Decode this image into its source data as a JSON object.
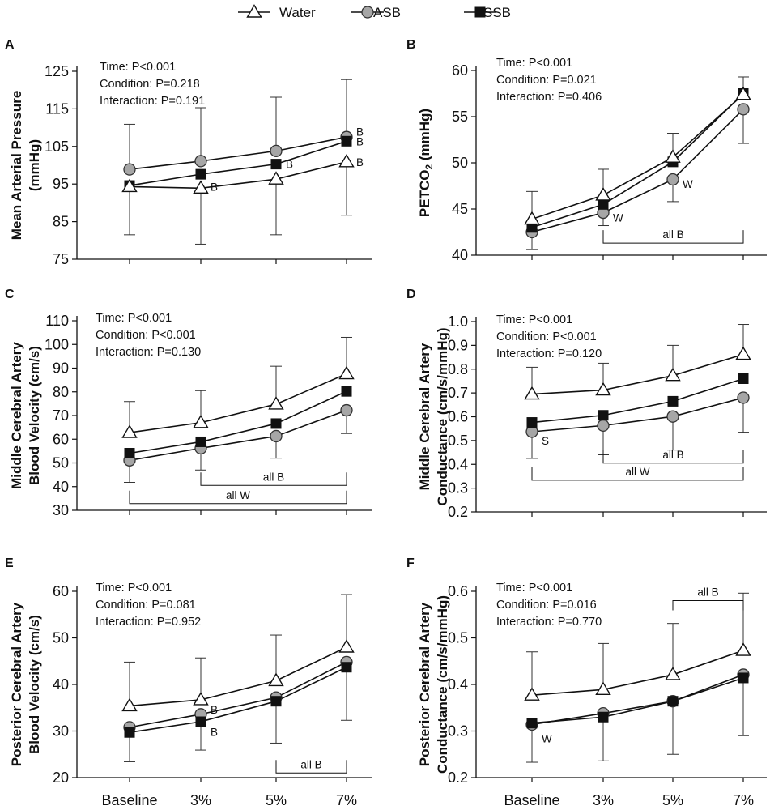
{
  "legend": [
    {
      "name": "Water",
      "marker": "triangle"
    },
    {
      "name": "ASB",
      "marker": "circle"
    },
    {
      "name": "SSB",
      "marker": "square"
    }
  ],
  "colors": {
    "water_fill": "#ffffff",
    "asb_fill": "#a6a6a6",
    "ssb_fill": "#111111",
    "line": "#111111"
  },
  "chart_data": [
    {
      "panel": "A",
      "type": "line",
      "ylabel_lines": [
        "Mean Arterial Pressure",
        "(mmHg)"
      ],
      "ylim": [
        75,
        125
      ],
      "yticks": [
        75,
        85,
        95,
        105,
        115,
        125
      ],
      "ytick_labels": [
        "75",
        "85",
        "95",
        "105",
        "115",
        "125"
      ],
      "categories": [
        "Baseline",
        "3%",
        "5%",
        "7%"
      ],
      "show_xticklabels": false,
      "series": [
        {
          "name": "Water",
          "values": [
            94.3,
            93.9,
            96.3,
            100.9
          ],
          "sd_up": [
            null,
            null,
            null,
            null
          ],
          "sd_down": [
            81.5,
            79.0,
            81.5,
            86.7
          ]
        },
        {
          "name": "ASB",
          "values": [
            98.9,
            101.1,
            103.8,
            107.5
          ],
          "sd_up": [
            110.9,
            115.3,
            118.1,
            122.8
          ],
          "sd_down": [
            null,
            null,
            null,
            null
          ]
        },
        {
          "name": "SSB",
          "values": [
            94.6,
            97.6,
            100.3,
            106.4
          ],
          "sd_up": [
            null,
            null,
            null,
            null
          ],
          "sd_down": [
            null,
            null,
            null,
            null
          ]
        }
      ],
      "stats": [
        "Time: P<0.001",
        "Condition: P=0.218",
        "Interaction: P=0.191"
      ],
      "annotations": [
        {
          "text": "B",
          "x": 1,
          "y": 94.3
        },
        {
          "text": "B",
          "x": 2,
          "y": 100.3
        },
        {
          "text": "B",
          "x": 3,
          "y": 108.9
        },
        {
          "text": "B",
          "x": 3,
          "y": 106.4
        },
        {
          "text": "B",
          "x": 3,
          "y": 100.9
        }
      ],
      "brackets": []
    },
    {
      "panel": "B",
      "type": "line",
      "ylabel_lines": [
        "PETCO2 (mmHg)"
      ],
      "ylim": [
        40,
        60
      ],
      "yticks": [
        40,
        45,
        50,
        55,
        60
      ],
      "ytick_labels": [
        "40",
        "45",
        "50",
        "55",
        "60"
      ],
      "categories": [
        "Baseline",
        "3%",
        "5%",
        "7%"
      ],
      "show_xticklabels": false,
      "series": [
        {
          "name": "Water",
          "values": [
            43.9,
            46.5,
            50.6,
            57.4
          ],
          "sd_up": [
            46.9,
            49.3,
            53.2,
            59.3
          ],
          "sd_down": [
            null,
            null,
            null,
            null
          ]
        },
        {
          "name": "ASB",
          "values": [
            42.5,
            44.6,
            48.2,
            55.8
          ],
          "sd_up": [
            null,
            null,
            null,
            null
          ],
          "sd_down": [
            40.6,
            43.2,
            45.8,
            52.1
          ]
        },
        {
          "name": "SSB",
          "values": [
            43.0,
            45.5,
            50.1,
            57.5
          ],
          "sd_up": [
            null,
            null,
            null,
            null
          ],
          "sd_down": [
            null,
            null,
            null,
            null
          ]
        }
      ],
      "stats": [
        "Time: P<0.001",
        "Condition: P=0.021",
        "Interaction: P=0.406"
      ],
      "annotations": [
        {
          "text": "W",
          "x": 1,
          "y": 44.1
        },
        {
          "text": "W",
          "x": 2,
          "y": 47.7
        }
      ],
      "brackets": [
        {
          "label": "all B",
          "x1": 1,
          "x2": 3,
          "y": 41.3,
          "ticks": "up",
          "label_pos": "above"
        }
      ]
    },
    {
      "panel": "C",
      "type": "line",
      "ylabel_lines": [
        "Middle Cerebral Artery",
        "Blood Velocity (cm/s)"
      ],
      "ylim": [
        30,
        110
      ],
      "yticks": [
        30,
        40,
        50,
        60,
        70,
        80,
        90,
        100,
        110
      ],
      "ytick_labels": [
        "30",
        "40",
        "50",
        "60",
        "70",
        "80",
        "90",
        "100",
        "110"
      ],
      "categories": [
        "Baseline",
        "3%",
        "5%",
        "7%"
      ],
      "show_xticklabels": false,
      "series": [
        {
          "name": "Water",
          "values": [
            62.8,
            67.0,
            74.8,
            87.6
          ],
          "sd_up": [
            75.9,
            80.5,
            90.8,
            103.0
          ],
          "sd_down": [
            null,
            null,
            null,
            null
          ]
        },
        {
          "name": "ASB",
          "values": [
            51.1,
            56.2,
            61.3,
            72.2
          ],
          "sd_up": [
            null,
            null,
            null,
            null
          ],
          "sd_down": [
            41.8,
            47.0,
            52.0,
            62.4
          ]
        },
        {
          "name": "SSB",
          "values": [
            54.1,
            58.9,
            66.6,
            80.2
          ],
          "sd_up": [
            null,
            null,
            null,
            null
          ],
          "sd_down": [
            null,
            null,
            null,
            null
          ]
        }
      ],
      "stats": [
        "Time: P<0.001",
        "Condition: P<0.001",
        "Interaction: P=0.130"
      ],
      "annotations": [],
      "brackets": [
        {
          "label": "all B",
          "x1": 1,
          "x2": 3,
          "y": 40.5,
          "ticks": "up",
          "label_pos": "above"
        },
        {
          "label": "all W",
          "x1": 0,
          "x2": 3,
          "y": 32.8,
          "ticks": "up",
          "label_pos": "above"
        }
      ]
    },
    {
      "panel": "D",
      "type": "line",
      "ylabel_lines": [
        "Middle Cerebral Artery",
        "Conductance (cm/s/mmHg)"
      ],
      "ylim": [
        0.2,
        1.0
      ],
      "yticks": [
        0.2,
        0.3,
        0.4,
        0.5,
        0.6,
        0.7,
        0.8,
        0.9,
        1.0
      ],
      "ytick_labels": [
        "0.2",
        "0.3",
        "0.4",
        "0.5",
        "0.6",
        "0.7",
        "0.8",
        "0.9",
        "1.0"
      ],
      "categories": [
        "Baseline",
        "3%",
        "5%",
        "7%"
      ],
      "show_xticklabels": false,
      "series": [
        {
          "name": "Water",
          "values": [
            0.695,
            0.712,
            0.773,
            0.862
          ],
          "sd_up": [
            0.808,
            0.825,
            0.9,
            0.988
          ],
          "sd_down": [
            null,
            null,
            null,
            null
          ]
        },
        {
          "name": "ASB",
          "values": [
            0.537,
            0.563,
            0.601,
            0.68
          ],
          "sd_up": [
            null,
            null,
            null,
            null
          ],
          "sd_down": [
            0.425,
            0.44,
            0.46,
            0.535
          ]
        },
        {
          "name": "SSB",
          "values": [
            0.576,
            0.606,
            0.665,
            0.76
          ],
          "sd_up": [
            null,
            null,
            null,
            null
          ],
          "sd_down": [
            null,
            null,
            null,
            null
          ]
        }
      ],
      "stats": [
        "Time: P<0.001",
        "Condition: P<0.001",
        "Interaction: P=0.120"
      ],
      "annotations": [
        {
          "text": "S",
          "x": 0,
          "y": 0.5
        }
      ],
      "brackets": [
        {
          "label": "all B",
          "x1": 1,
          "x2": 3,
          "y": 0.405,
          "ticks": "up",
          "label_pos": "above"
        },
        {
          "label": "all W",
          "x1": 0,
          "x2": 3,
          "y": 0.333,
          "ticks": "up",
          "label_pos": "above"
        }
      ]
    },
    {
      "panel": "E",
      "type": "line",
      "ylabel_lines": [
        "Posterior Cerebral Artery",
        "Blood Velocity (cm/s)"
      ],
      "ylim": [
        20,
        60
      ],
      "yticks": [
        20,
        30,
        40,
        50,
        60
      ],
      "ytick_labels": [
        "20",
        "30",
        "40",
        "50",
        "60"
      ],
      "categories": [
        "Baseline",
        "3%",
        "5%",
        "7%"
      ],
      "show_xticklabels": true,
      "series": [
        {
          "name": "Water",
          "values": [
            35.4,
            36.7,
            40.8,
            48.0
          ],
          "sd_up": [
            44.8,
            45.7,
            50.6,
            59.3
          ],
          "sd_down": [
            null,
            null,
            null,
            null
          ]
        },
        {
          "name": "ASB",
          "values": [
            30.8,
            33.6,
            37.2,
            44.8
          ],
          "sd_up": [
            null,
            null,
            null,
            null
          ],
          "sd_down": [
            null,
            null,
            null,
            null
          ]
        },
        {
          "name": "SSB",
          "values": [
            29.7,
            32.0,
            36.4,
            43.7
          ],
          "sd_up": [
            null,
            null,
            null,
            null
          ],
          "sd_down": [
            23.4,
            25.9,
            27.4,
            32.3
          ]
        }
      ],
      "stats": [
        "Time: P<0.001",
        "Condition: P=0.081",
        "Interaction: P=0.952"
      ],
      "annotations": [
        {
          "text": "B",
          "x": 1,
          "y": 34.6
        },
        {
          "text": "B",
          "x": 1,
          "y": 29.8
        }
      ],
      "brackets": [
        {
          "label": "all B",
          "x1": 2,
          "x2": 3,
          "y": 21.0,
          "ticks": "up",
          "label_pos": "above"
        }
      ]
    },
    {
      "panel": "F",
      "type": "line",
      "ylabel_lines": [
        "Posterior Cerebral Artery",
        "Conductance (cm/s/mmHg)"
      ],
      "ylim": [
        0.2,
        0.6
      ],
      "yticks": [
        0.2,
        0.3,
        0.4,
        0.5,
        0.6
      ],
      "ytick_labels": [
        "0.2",
        "0.3",
        "0.4",
        "0.5",
        "0.6"
      ],
      "categories": [
        "Baseline",
        "3%",
        "5%",
        "7%"
      ],
      "show_xticklabels": true,
      "series": [
        {
          "name": "Water",
          "values": [
            0.377,
            0.389,
            0.421,
            0.473
          ],
          "sd_up": [
            0.47,
            0.488,
            0.531,
            0.596
          ],
          "sd_down": [
            null,
            null,
            null,
            null
          ]
        },
        {
          "name": "ASB",
          "values": [
            0.314,
            0.338,
            0.364,
            0.421
          ],
          "sd_up": [
            null,
            null,
            null,
            null
          ],
          "sd_down": [
            0.233,
            0.236,
            0.25,
            0.29
          ]
        },
        {
          "name": "SSB",
          "values": [
            0.317,
            0.33,
            0.364,
            0.414
          ],
          "sd_up": [
            null,
            null,
            null,
            null
          ],
          "sd_down": [
            null,
            null,
            null,
            null
          ]
        }
      ],
      "stats": [
        "Time: P<0.001",
        "Condition: P=0.016",
        "Interaction: P=0.770"
      ],
      "annotations": [
        {
          "text": "W",
          "x": 0,
          "y": 0.284
        }
      ],
      "brackets": [
        {
          "label": "all B",
          "x1": 2,
          "x2": 3,
          "y": 0.58,
          "ticks": "down",
          "label_pos": "above"
        }
      ]
    }
  ]
}
